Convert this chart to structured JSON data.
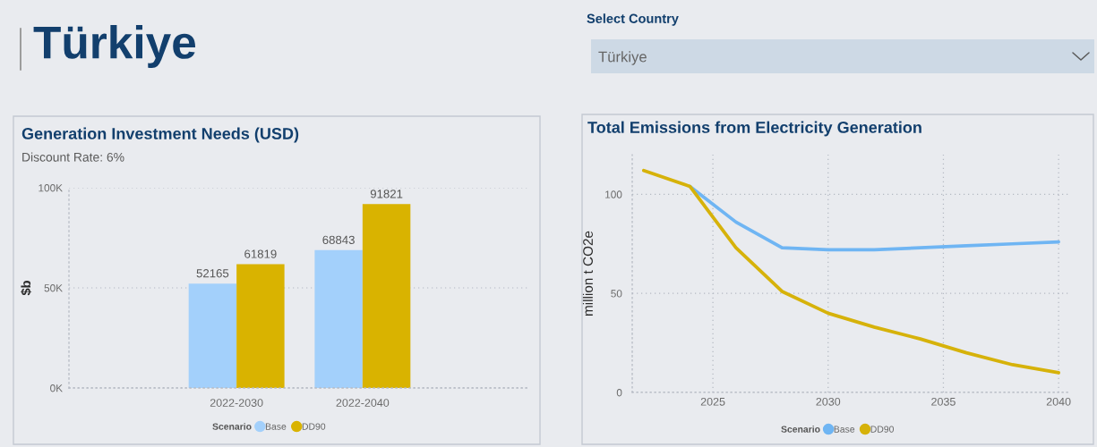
{
  "chart_data": [
    {
      "type": "other",
      "title": "Türkiye",
      "annotations": [
        "Select Country",
        "Türkiye"
      ]
    },
    {
      "type": "bar",
      "title": "Generation Investment Needs (USD)",
      "subtitle": "Discount Rate: 6%",
      "ylabel": "$b",
      "legend_title": "Scenario",
      "categories": [
        "2022-2030",
        "2022-2040"
      ],
      "series": [
        {
          "name": "Base",
          "color": "#a3d0fb",
          "values": [
            52165,
            68843
          ]
        },
        {
          "name": "DD90",
          "color": "#d9b300",
          "values": [
            61819,
            91821
          ]
        }
      ],
      "ylim": [
        0,
        100000
      ],
      "yticks": [
        {
          "value": 0,
          "label": "0K"
        },
        {
          "value": 50000,
          "label": "50K"
        },
        {
          "value": 100000,
          "label": "100K"
        }
      ],
      "grid": "y",
      "legend": "bottom",
      "data_labels": true
    },
    {
      "type": "line",
      "title": "Total Emissions from Electricity Generation",
      "ylabel": "million t CO2e",
      "legend_title": "Scenario",
      "x": [
        2022,
        2024,
        2026,
        2028,
        2030,
        2032,
        2034,
        2036,
        2038,
        2040
      ],
      "series": [
        {
          "name": "Base",
          "color": "#6fb5f3",
          "values": [
            null,
            104,
            86,
            73,
            72,
            72,
            73,
            74,
            75,
            76
          ]
        },
        {
          "name": "DD90",
          "color": "#d6b20a",
          "values": [
            112,
            104,
            73,
            51,
            40,
            33,
            27,
            20,
            14,
            10
          ]
        }
      ],
      "xlim": [
        2021.5,
        2040.5
      ],
      "xticks": [
        2025,
        2030,
        2035,
        2040
      ],
      "ylim": [
        0,
        120
      ],
      "yticks": [
        0,
        50,
        100
      ],
      "grid": true,
      "legend": "bottom"
    }
  ]
}
